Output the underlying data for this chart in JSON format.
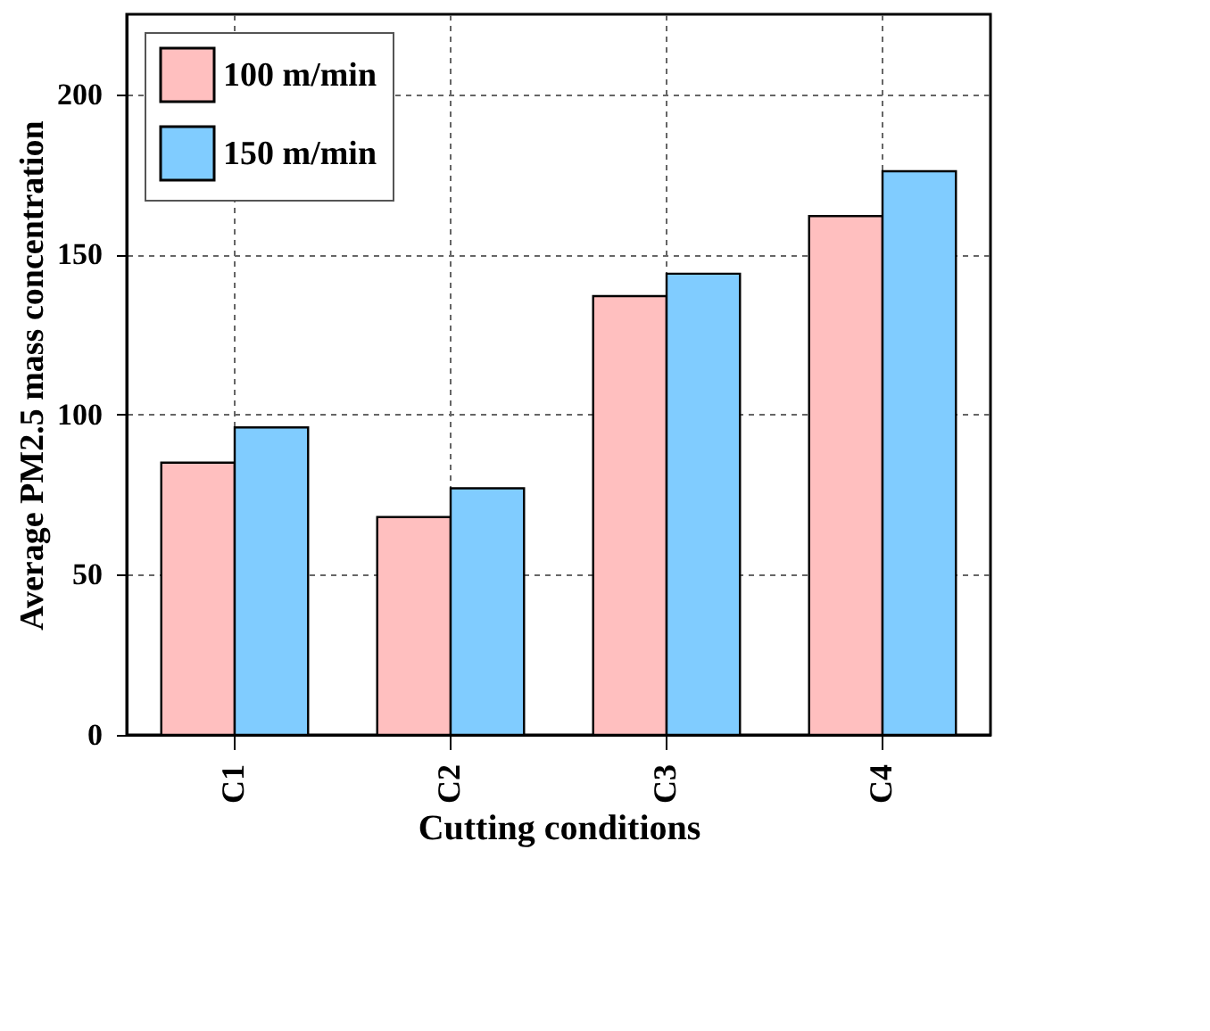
{
  "chart_data": {
    "type": "bar",
    "xlabel": "Cutting conditions",
    "ylabel": "Average PM2.5 mass concentration",
    "categories": [
      "C1",
      "C2",
      "C3",
      "C4"
    ],
    "series": [
      {
        "name": "100 m/min",
        "color": "#ffbfbf",
        "values": [
          85,
          68,
          137,
          162
        ]
      },
      {
        "name": "150 m/min",
        "color": "#80ccff",
        "values": [
          96,
          77,
          144,
          176
        ]
      }
    ],
    "ylim": [
      0,
      225
    ],
    "yticks": [
      0,
      50,
      100,
      150,
      200
    ],
    "grid": true,
    "legend": "top left"
  }
}
